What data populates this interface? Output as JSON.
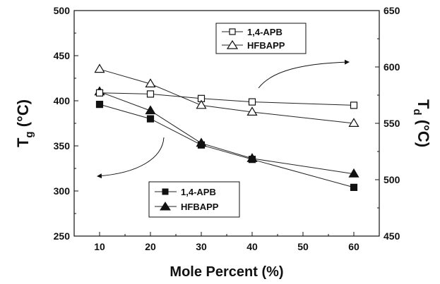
{
  "chart_data": {
    "type": "line",
    "x": [
      10,
      20,
      30,
      40,
      60
    ],
    "xlabel": "Mole Percent (%)",
    "xlim": [
      5,
      65
    ],
    "xticks": [
      10,
      20,
      30,
      40,
      50,
      60
    ],
    "ylabel_left": {
      "main": "T",
      "sub": "g",
      "unit": "(°C)"
    },
    "ylabel_right": {
      "main": "T",
      "sub": "d",
      "unit": "(°C)"
    },
    "ylim_left": [
      250,
      500
    ],
    "yticks_left": [
      250,
      300,
      350,
      400,
      450,
      500
    ],
    "ylim_right": [
      450,
      650
    ],
    "yticks_right": [
      450,
      500,
      550,
      600,
      650
    ],
    "grid": false,
    "series": [
      {
        "name": "1,4-APB",
        "axis": "left",
        "marker": "square-filled",
        "values": [
          396,
          380,
          351,
          335,
          304
        ]
      },
      {
        "name": "HFBAPP",
        "axis": "left",
        "marker": "triangle-filled",
        "values": [
          410,
          389,
          353,
          336,
          319
        ]
      },
      {
        "name": "1,4-APB",
        "axis": "right",
        "marker": "square-open",
        "values": [
          577,
          576,
          572,
          569,
          566
        ]
      },
      {
        "name": "HFBAPP",
        "axis": "right",
        "marker": "triangle-open",
        "values": [
          598,
          585,
          566,
          560,
          550
        ]
      }
    ],
    "legends": [
      {
        "placement": "top-right",
        "entries": [
          "1,4-APB",
          "HFBAPP"
        ],
        "markers": [
          "square-open",
          "triangle-open"
        ]
      },
      {
        "placement": "bottom-center",
        "entries": [
          "1,4-APB",
          "HFBAPP"
        ],
        "markers": [
          "square-filled",
          "triangle-filled"
        ]
      }
    ]
  }
}
